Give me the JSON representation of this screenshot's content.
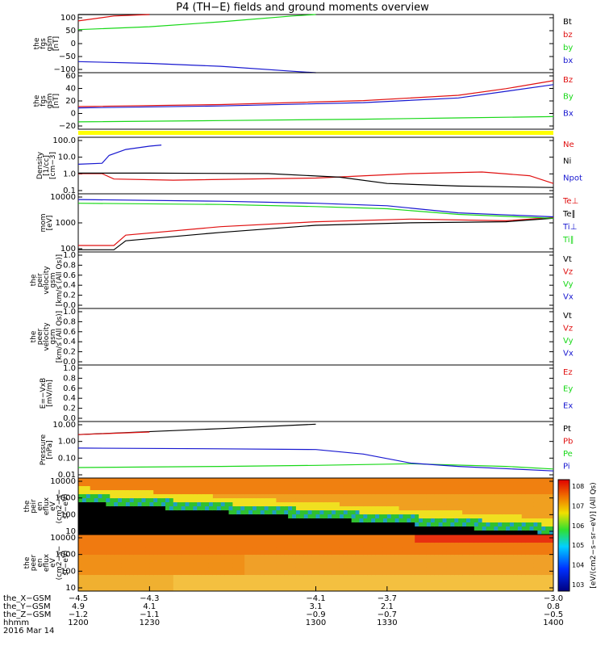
{
  "title": "P4 (TH−E) fields and ground moments overview",
  "date_label": "2016 Mar 14",
  "colors": {
    "black": "#000000",
    "red": "#e01010",
    "green": "#18d818",
    "blue": "#1818d0",
    "yellow": "#ffff00"
  },
  "chart_data": [
    {
      "type": "line",
      "id": "fgs_gsm",
      "ylabel": [
        "the",
        "fgs",
        "gsm",
        "[nT]"
      ],
      "yticks": [
        "100",
        "50",
        "0",
        "−50",
        "−100"
      ],
      "ylim": [
        -100,
        100
      ],
      "series": [
        {
          "name": "Bt",
          "color": "black",
          "x": [
            1200,
            1230
          ],
          "y": [
            100,
            100
          ]
        },
        {
          "name": "bz",
          "color": "red",
          "x": [
            1200,
            1215,
            1230
          ],
          "y": [
            78,
            95,
            100
          ]
        },
        {
          "name": "by",
          "color": "green",
          "x": [
            1200,
            1230,
            1260,
            1290,
            1300
          ],
          "y": [
            48,
            58,
            75,
            95,
            100
          ]
        },
        {
          "name": "bx",
          "color": "blue",
          "x": [
            1200,
            1230,
            1260,
            1290,
            1300
          ],
          "y": [
            -62,
            -68,
            -78,
            -95,
            -100
          ]
        }
      ]
    },
    {
      "type": "line",
      "id": "fgs_gsm_dsl",
      "ylabel": [
        "the",
        "fgs",
        "gsm",
        "[nT]"
      ],
      "yticks": [
        "60",
        "40",
        "20",
        "0",
        "−20"
      ],
      "ylim": [
        -25,
        60
      ],
      "series": [
        {
          "name": "Bz",
          "color": "red",
          "x": [
            1200,
            1260,
            1320,
            1360,
            1380,
            1400
          ],
          "y": [
            9,
            12,
            18,
            26,
            36,
            48
          ]
        },
        {
          "name": "By",
          "color": "green",
          "x": [
            1200,
            1260,
            1320,
            1360,
            1400
          ],
          "y": [
            -14,
            -12,
            -10,
            -8,
            -6
          ]
        },
        {
          "name": "Bx",
          "color": "blue",
          "x": [
            1200,
            1260,
            1320,
            1360,
            1380,
            1400
          ],
          "y": [
            7,
            10,
            15,
            22,
            32,
            42
          ]
        }
      ]
    },
    {
      "type": "line",
      "id": "density",
      "ylabel": [
        "Density",
        "[1/cc]",
        "[cm−3]"
      ],
      "yticks": [
        "100.0",
        "10.0",
        "1.0",
        "0.1"
      ],
      "ylim": [
        0.03,
        200
      ],
      "log": true,
      "series": [
        {
          "name": "Ne",
          "color": "red",
          "x": [
            1200,
            1210,
            1215,
            1240,
            1300,
            1340,
            1370,
            1390,
            1400
          ],
          "y": [
            0.7,
            0.7,
            0.3,
            0.25,
            0.35,
            0.7,
            0.9,
            0.5,
            0.15
          ]
        },
        {
          "name": "Ni",
          "color": "black",
          "x": [
            1200,
            1230,
            1280,
            1310,
            1330,
            1360,
            1400
          ],
          "y": [
            0.75,
            0.75,
            0.7,
            0.4,
            0.15,
            0.1,
            0.08
          ]
        },
        {
          "name": "Npot",
          "color": "blue",
          "x": [
            1200,
            1210,
            1213,
            1220,
            1230,
            1235
          ],
          "y": [
            3,
            3.5,
            12,
            30,
            50,
            60
          ]
        }
      ]
    },
    {
      "type": "line",
      "id": "temperature",
      "ylabel": [
        "mom",
        "[eV]"
      ],
      "yticks": [
        "10000",
        "1000",
        "100"
      ],
      "ylim": [
        100,
        12000
      ],
      "log": true,
      "series": [
        {
          "name": "Te⊥",
          "color": "red",
          "x": [
            1200,
            1215,
            1220,
            1260,
            1300,
            1340,
            1380,
            1400
          ],
          "y": [
            170,
            170,
            400,
            800,
            1200,
            1500,
            1300,
            1700
          ]
        },
        {
          "name": "Te∥",
          "color": "black",
          "x": [
            1200,
            1215,
            1220,
            1260,
            1300,
            1340,
            1380,
            1400
          ],
          "y": [
            120,
            120,
            250,
            500,
            900,
            1100,
            1200,
            1600
          ]
        },
        {
          "name": "Ti⊥",
          "color": "blue",
          "x": [
            1200,
            1260,
            1300,
            1330,
            1360,
            1400
          ],
          "y": [
            7500,
            6500,
            5500,
            4500,
            2500,
            1800
          ]
        },
        {
          "name": "Ti∥",
          "color": "green",
          "x": [
            1200,
            1260,
            1300,
            1330,
            1360,
            1400
          ],
          "y": [
            5500,
            5000,
            4200,
            3500,
            2200,
            1600
          ]
        }
      ]
    },
    {
      "type": "line",
      "id": "peir_velocity",
      "ylabel": [
        "the",
        "peir",
        "velocity",
        "gsm",
        "[km/s (All Qs)]"
      ],
      "yticks": [
        "1.0",
        "0.8",
        "0.6",
        "0.4",
        "0.2",
        "0.0"
      ],
      "ylim": [
        0,
        1
      ],
      "series": [
        {
          "name": "Vt"
        },
        {
          "name": "Vz"
        },
        {
          "name": "Vy"
        },
        {
          "name": "Vx"
        }
      ]
    },
    {
      "type": "line",
      "id": "peer_velocity",
      "ylabel": [
        "the",
        "peer",
        "velocity",
        "gsm",
        "[km/s (All Qs)]"
      ],
      "yticks": [
        "1.0",
        "0.8",
        "0.6",
        "0.4",
        "0.2",
        "0.0"
      ],
      "ylim": [
        0,
        1
      ],
      "series": [
        {
          "name": "Vt"
        },
        {
          "name": "Vz"
        },
        {
          "name": "Vy"
        },
        {
          "name": "Vx"
        }
      ]
    },
    {
      "type": "line",
      "id": "efield",
      "ylabel": [
        "E=−VxB",
        "[mV/m]"
      ],
      "yticks": [
        "1.0",
        "0.8",
        "0.6",
        "0.4",
        "0.2",
        "0.0"
      ],
      "ylim": [
        0,
        1
      ],
      "series": [
        {
          "name": "Ez"
        },
        {
          "name": "Ey"
        },
        {
          "name": "Ex"
        }
      ]
    },
    {
      "type": "line",
      "id": "pressure",
      "ylabel": [
        "Pressure",
        "[nPa]"
      ],
      "yticks": [
        "10.00",
        "1.00",
        "0.10",
        "0.01"
      ],
      "ylim": [
        0.005,
        30
      ],
      "log": true,
      "series": [
        {
          "name": "Pt",
          "color": "black",
          "x": [
            1200,
            1260,
            1300
          ],
          "y": [
            4,
            10,
            20
          ]
        },
        {
          "name": "Pb",
          "color": "red",
          "x": [
            1200,
            1230
          ],
          "y": [
            4,
            6
          ]
        },
        {
          "name": "Pe",
          "color": "green",
          "x": [
            1200,
            1260,
            1300,
            1340,
            1380,
            1400
          ],
          "y": [
            0.025,
            0.03,
            0.035,
            0.045,
            0.03,
            0.02
          ]
        },
        {
          "name": "Pi",
          "color": "blue",
          "x": [
            1200,
            1260,
            1300,
            1320,
            1340,
            1360,
            1400
          ],
          "y": [
            0.5,
            0.45,
            0.4,
            0.2,
            0.05,
            0.03,
            0.015
          ]
        }
      ]
    },
    {
      "type": "heatmap",
      "id": "peir_eflux",
      "ylabel": [
        "the",
        "peir",
        "en",
        "eflux",
        "eV",
        "(cm2−s−",
        "sr−eV)"
      ],
      "yticks": [
        "10000",
        "1000",
        "100",
        "10"
      ],
      "ylim": [
        10,
        20000
      ],
      "log": true
    },
    {
      "type": "heatmap",
      "id": "peer_eflux",
      "ylabel": [
        "the",
        "peer",
        "en",
        "eflux",
        "eV",
        "(cm2−s−",
        "sr−eV)"
      ],
      "yticks": [
        "10000",
        "1000",
        "100",
        "10"
      ],
      "ylim": [
        10,
        20000
      ],
      "log": true
    }
  ],
  "colorbar": {
    "label": "[eV/(cm2−s−sr−eV)] (All Qs)",
    "ticks": [
      "10^8",
      "10^7",
      "10^6",
      "10^5",
      "10^4",
      "10^3"
    ]
  },
  "x_axis": {
    "ticks_hhmm": [
      "1200",
      "1230",
      "1300",
      "1330",
      "1400"
    ],
    "rows": [
      {
        "label": "the_X−GSM",
        "values": [
          "−4.5",
          "−4.3",
          "−4.1",
          "−3.7",
          "−3.0"
        ]
      },
      {
        "label": "the_Y−GSM",
        "values": [
          "4.9",
          "4.1",
          "3.1",
          "2.1",
          "0.8"
        ]
      },
      {
        "label": "the_Z−GSM",
        "values": [
          "−1.2",
          "−1.1",
          "−0.9",
          "−0.7",
          "−0.5"
        ]
      },
      {
        "label": "hhmm",
        "values": [
          "1200",
          "1230",
          "1300",
          "1330",
          "1400"
        ]
      }
    ]
  }
}
